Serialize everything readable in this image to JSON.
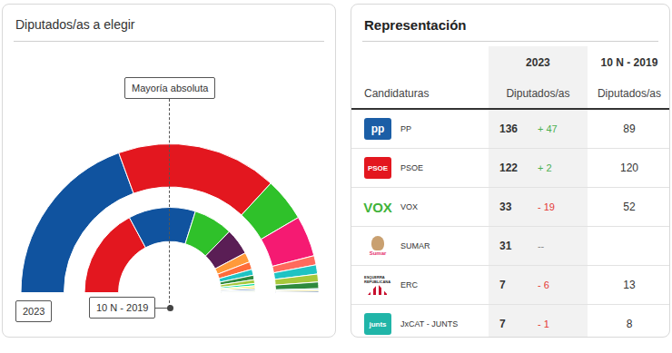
{
  "chart_data": {
    "type": "doughnut",
    "title": "Diputados/as a elegir",
    "annotations": [
      "Mayoría absoluta"
    ],
    "series": [
      {
        "name": "2023",
        "values": [
          136,
          122,
          33,
          31,
          7,
          7,
          6,
          5,
          1,
          1,
          1
        ],
        "colors": [
          "#10539f",
          "#e3171f",
          "#2fc12a",
          "#f51a72",
          "#ff6a5c",
          "#1fc3c3",
          "#a6c83b",
          "#2f8a3e",
          "#8ec6e8",
          "#f2d21b",
          "#3a66b0"
        ]
      },
      {
        "name": "10 N - 2019",
        "values": [
          120,
          89,
          52,
          35,
          13,
          10,
          8,
          6,
          5,
          3,
          2,
          2,
          2,
          1,
          1,
          1
        ],
        "colors": [
          "#e3171f",
          "#10539f",
          "#2fc12a",
          "#5a1e55",
          "#ff9a3a",
          "#ff6c3a",
          "#1fc3c3",
          "#2f8a3e",
          "#a6c83b",
          "#0fdea0",
          "#ffed00",
          "#f2d21b",
          "#3a66b0",
          "#8ec6e8",
          "#b6d44a",
          "#1d6b3c"
        ]
      }
    ]
  },
  "table": {
    "title": "Representación",
    "first_header": "Candidaturas",
    "columns": [
      {
        "year": "2023",
        "header": "Diputados/as"
      },
      {
        "year": "10 N - 2019",
        "header": "Diputados/as"
      }
    ],
    "rows": [
      {
        "logo": {
          "kind": "box",
          "text": "pp",
          "color": "#1b5ea6"
        },
        "name": "PP",
        "seats": 136,
        "change": "+ 47",
        "previous": 89
      },
      {
        "logo": {
          "kind": "box",
          "text": "PSOE",
          "color": "#e3171f"
        },
        "name": "PSOE",
        "seats": 122,
        "change": "+ 2",
        "previous": 120
      },
      {
        "logo": {
          "kind": "word",
          "text": "VOX",
          "color": "#3fb33a"
        },
        "name": "VOX",
        "seats": 33,
        "change": "- 19",
        "previous": 52
      },
      {
        "logo": {
          "kind": "photo",
          "text": "Sumar",
          "color": "#e5306e"
        },
        "name": "SUMAR",
        "seats": 31,
        "change": "--",
        "previous": null
      },
      {
        "logo": {
          "kind": "flag",
          "text": "ESQUERRA REPUBLICANA",
          "color": "#c8102e"
        },
        "name": "ERC",
        "seats": 7,
        "change": "- 6",
        "previous": 13
      },
      {
        "logo": {
          "kind": "box",
          "text": "junts",
          "color": "#20b5a8"
        },
        "name": "JxCAT - JUNTS",
        "seats": 7,
        "change": "- 1",
        "previous": 8
      }
    ]
  }
}
